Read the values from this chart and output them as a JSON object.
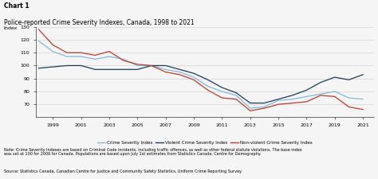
{
  "title_line1": "Chart 1",
  "title_line2": "Police-reported Crime Severity Indexes, Canada, 1998 to 2021",
  "ylabel": "Index",
  "ylim": [
    60,
    130
  ],
  "yticks": [
    70,
    80,
    90,
    100,
    110,
    120,
    130
  ],
  "years": [
    1998,
    1999,
    2000,
    2001,
    2002,
    2003,
    2004,
    2005,
    2006,
    2007,
    2008,
    2009,
    2010,
    2011,
    2012,
    2013,
    2014,
    2015,
    2016,
    2017,
    2018,
    2019,
    2020,
    2021
  ],
  "crime_severity": [
    119,
    111,
    107,
    107,
    105,
    107,
    105,
    100,
    100,
    97,
    95,
    91,
    84,
    80,
    77,
    67,
    68,
    73,
    74,
    76,
    78,
    80,
    75,
    74
  ],
  "violent_crime": [
    98,
    99,
    100,
    100,
    97,
    97,
    97,
    97,
    100,
    100,
    97,
    94,
    89,
    83,
    79,
    71,
    71,
    74,
    77,
    81,
    87,
    91,
    89,
    93
  ],
  "nonviolent_crime": [
    128,
    116,
    110,
    110,
    108,
    111,
    104,
    101,
    100,
    95,
    93,
    89,
    81,
    75,
    74,
    65,
    67,
    70,
    71,
    72,
    77,
    76,
    68,
    66
  ],
  "crime_color": "#7fb8e0",
  "violent_color": "#1a3a5c",
  "nonviolent_color": "#c0392b",
  "background_color": "#f5f5f5",
  "grid_color": "#cccccc",
  "xticks": [
    1999,
    2001,
    2003,
    2005,
    2007,
    2009,
    2011,
    2013,
    2015,
    2017,
    2019,
    2021
  ],
  "note_text": "Note: Crime Severity Indexes are based on Criminal Code incidents, including traffic offences, as well as other federal statute violations. The base index\nwas set at 100 for 2006 for Canada. Populations are based upon July 1st estimates from Statistics Canada, Centre for Demography.",
  "source_text": "Source: Statistics Canada, Canadian Centre for Justice and Community Safety Statistics, Uniform Crime Reporting Survey.",
  "legend_labels": [
    "Crime Severity Index",
    "Violent Crime Severity Index",
    "Non-violent Crime Severity Index"
  ]
}
